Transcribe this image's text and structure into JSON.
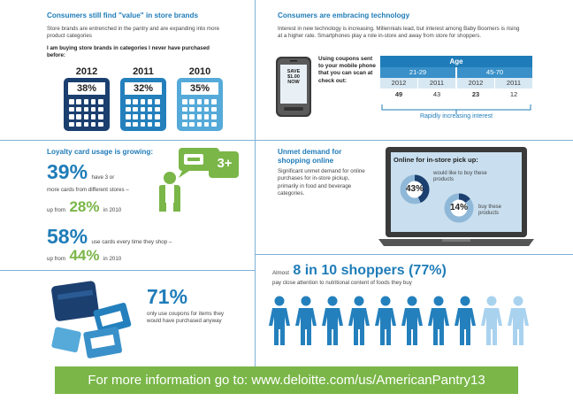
{
  "store_brands": {
    "title": "Consumers still find \"value\" in store brands",
    "body": "Store brands are entrenched in the pantry and are expanding into more product categories",
    "statement": "I am buying store brands in categories I never have purchased before:",
    "items": [
      {
        "year": "2012",
        "value": "38%",
        "color": "#1b3f6f"
      },
      {
        "year": "2011",
        "value": "32%",
        "color": "#2480bd"
      },
      {
        "year": "2010",
        "value": "35%",
        "color": "#55aad9"
      }
    ]
  },
  "technology": {
    "title": "Consumers are embracing technology",
    "body": "Interest in new technology is increasing. Millennials lead, but interest among Baby Boomers is rising at a higher rate. Smartphones play a role in-store and away from store for shoppers.",
    "coupon_text": "Using coupons sent to your mobile phone that you can scan at check out:",
    "phone_screen": "SAVE $1.00 NOW",
    "table": {
      "header": "Age",
      "groups": [
        "21-29",
        "45-70"
      ],
      "years": [
        "2012",
        "2011",
        "2012",
        "2011"
      ],
      "values": [
        "49",
        "43",
        "23",
        "12"
      ]
    },
    "arrow_label": "Rapidly increasing interest"
  },
  "loyalty": {
    "title": "Loyalty card usage is growing:",
    "card_badge": "3+",
    "stat1": {
      "value": "39%",
      "text1": "have 3 or",
      "text2": "more cards from different stores –",
      "text3": "up from",
      "prev": "28%",
      "text4": "in 2010"
    },
    "stat2": {
      "value": "58%",
      "text1": "use cards every time they shop –",
      "text3": "up from",
      "prev": "44%",
      "text4": "in 2010"
    }
  },
  "online": {
    "title": "Unmet demand for shopping online",
    "body": "Significant unmet demand for online purchases for in-store pickup, primarily in food and beverage categories.",
    "screen_title": "Online for in-store pick up:",
    "donut1": {
      "value": "43%",
      "label": "would like to buy these products",
      "fraction": 0.43
    },
    "donut2": {
      "value": "14%",
      "label": "buy these products",
      "fraction": 0.14
    }
  },
  "coupons": {
    "value": "71%",
    "text": "only use coupons for items they would have purchased anyway"
  },
  "shoppers": {
    "prefix": "Almost",
    "headline": "8 in 10 shoppers (77%)",
    "sub": "pay close attention to nutritional content of foods they buy",
    "total_people": 10,
    "highlighted": 8
  },
  "footer": {
    "text": "For more information go to: www.deloitte.com/us/AmericanPantry13"
  },
  "colors": {
    "blue": "#1f7cb8",
    "dark_blue": "#1b3f6f",
    "light_blue": "#55aad9",
    "green": "#7ab648"
  }
}
